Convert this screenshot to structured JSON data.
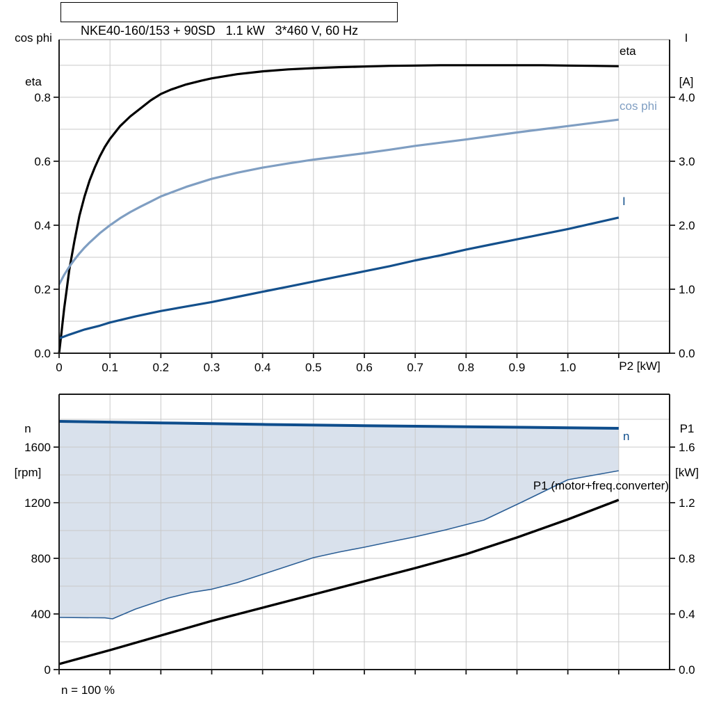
{
  "colors": {
    "grid": "#c9c9c9",
    "frame": "#1a1a1a",
    "frame_top_light": "#9b9b9b",
    "fill": "#cfdae7",
    "eta": "#000000",
    "cos_phi": "#7f9ec2",
    "current": "#14508c",
    "speed": "#0e4d8c",
    "p1": "#000000"
  },
  "chart_data": [
    {
      "type": "line",
      "title": "NKE40-160/153 + 90SD   1.1 kW   3*460 V, 60 Hz",
      "xlabel": "P2 [kW]",
      "xlim": [
        0,
        1.2
      ],
      "grid_x_step": 0.1,
      "x_ticks": {
        "values": [
          0,
          0.1,
          0.2,
          0.3,
          0.4,
          0.5,
          0.6,
          0.7,
          0.8,
          0.9,
          1.0,
          1.1
        ],
        "labels": [
          "0",
          "0.1",
          "0.2",
          "0.3",
          "0.4",
          "0.5",
          "0.6",
          "0.7",
          "0.8",
          "0.9",
          "1.0"
        ]
      },
      "y_left": {
        "title_lines": [
          "cos phi",
          "eta"
        ],
        "lim": [
          0,
          0.98
        ],
        "grid_step": 0.1,
        "ticks": {
          "values": [
            0,
            0.2,
            0.4,
            0.6,
            0.8
          ],
          "labels": [
            "0.0",
            "0.2",
            "0.4",
            "0.6",
            "0.8"
          ]
        }
      },
      "y_right": {
        "title_lines": [
          "I",
          "[A]"
        ],
        "lim": [
          0,
          4.9
        ],
        "ticks": {
          "values": [
            0,
            1,
            2,
            3,
            4
          ],
          "labels": [
            "0.0",
            "1.0",
            "2.0",
            "3.0",
            "4.0"
          ]
        }
      },
      "series": [
        {
          "name": "eta",
          "label": "eta",
          "axis": "left",
          "color": "#000000",
          "width": 3.2,
          "points": [
            [
              0,
              0
            ],
            [
              0.005,
              0.07
            ],
            [
              0.01,
              0.14
            ],
            [
              0.015,
              0.2
            ],
            [
              0.02,
              0.26
            ],
            [
              0.03,
              0.35
            ],
            [
              0.04,
              0.43
            ],
            [
              0.05,
              0.49
            ],
            [
              0.06,
              0.54
            ],
            [
              0.07,
              0.58
            ],
            [
              0.08,
              0.615
            ],
            [
              0.09,
              0.645
            ],
            [
              0.1,
              0.67
            ],
            [
              0.12,
              0.71
            ],
            [
              0.14,
              0.74
            ],
            [
              0.16,
              0.765
            ],
            [
              0.18,
              0.79
            ],
            [
              0.2,
              0.81
            ],
            [
              0.22,
              0.824
            ],
            [
              0.25,
              0.84
            ],
            [
              0.28,
              0.852
            ],
            [
              0.3,
              0.859
            ],
            [
              0.35,
              0.872
            ],
            [
              0.4,
              0.881
            ],
            [
              0.45,
              0.887
            ],
            [
              0.5,
              0.891
            ],
            [
              0.55,
              0.894
            ],
            [
              0.6,
              0.896
            ],
            [
              0.65,
              0.898
            ],
            [
              0.7,
              0.899
            ],
            [
              0.75,
              0.9
            ],
            [
              0.8,
              0.9
            ],
            [
              0.9,
              0.9
            ],
            [
              0.95,
              0.9
            ],
            [
              1.0,
              0.899
            ],
            [
              1.05,
              0.898
            ],
            [
              1.1,
              0.897
            ]
          ]
        },
        {
          "name": "cos_phi",
          "label": "cos phi",
          "axis": "left",
          "color": "#7f9ec2",
          "width": 3.2,
          "points": [
            [
              0,
              0.215
            ],
            [
              0.01,
              0.245
            ],
            [
              0.02,
              0.27
            ],
            [
              0.03,
              0.292
            ],
            [
              0.04,
              0.312
            ],
            [
              0.05,
              0.33
            ],
            [
              0.06,
              0.346
            ],
            [
              0.08,
              0.375
            ],
            [
              0.1,
              0.4
            ],
            [
              0.12,
              0.422
            ],
            [
              0.14,
              0.441
            ],
            [
              0.16,
              0.458
            ],
            [
              0.18,
              0.474
            ],
            [
              0.2,
              0.49
            ],
            [
              0.25,
              0.52
            ],
            [
              0.3,
              0.545
            ],
            [
              0.35,
              0.564
            ],
            [
              0.4,
              0.58
            ],
            [
              0.45,
              0.593
            ],
            [
              0.5,
              0.605
            ],
            [
              0.55,
              0.615
            ],
            [
              0.6,
              0.625
            ],
            [
              0.65,
              0.636
            ],
            [
              0.7,
              0.648
            ],
            [
              0.75,
              0.658
            ],
            [
              0.8,
              0.668
            ],
            [
              0.85,
              0.679
            ],
            [
              0.9,
              0.69
            ],
            [
              0.95,
              0.7
            ],
            [
              1.0,
              0.71
            ],
            [
              1.05,
              0.72
            ],
            [
              1.1,
              0.73
            ]
          ]
        },
        {
          "name": "I",
          "label": "I",
          "axis": "right",
          "color": "#14508c",
          "width": 3.2,
          "points": [
            [
              0,
              0.23
            ],
            [
              0.02,
              0.29
            ],
            [
              0.05,
              0.37
            ],
            [
              0.08,
              0.43
            ],
            [
              0.1,
              0.48
            ],
            [
              0.15,
              0.575
            ],
            [
              0.2,
              0.66
            ],
            [
              0.25,
              0.73
            ],
            [
              0.3,
              0.8
            ],
            [
              0.35,
              0.88
            ],
            [
              0.4,
              0.96
            ],
            [
              0.45,
              1.04
            ],
            [
              0.5,
              1.12
            ],
            [
              0.55,
              1.2
            ],
            [
              0.6,
              1.28
            ],
            [
              0.65,
              1.36
            ],
            [
              0.7,
              1.45
            ],
            [
              0.75,
              1.53
            ],
            [
              0.8,
              1.62
            ],
            [
              0.85,
              1.7
            ],
            [
              0.9,
              1.78
            ],
            [
              0.95,
              1.86
            ],
            [
              1.0,
              1.94
            ],
            [
              1.05,
              2.03
            ],
            [
              1.1,
              2.12
            ]
          ]
        }
      ]
    },
    {
      "type": "line",
      "xlim": [
        0,
        1.2
      ],
      "grid_x_step": 0.1,
      "x_ticks": {
        "values": [
          0,
          0.1,
          0.2,
          0.3,
          0.4,
          0.5,
          0.6,
          0.7,
          0.8,
          0.9,
          1.0,
          1.1
        ],
        "labels": []
      },
      "y_left": {
        "title_lines": [
          "n",
          "[rpm]"
        ],
        "lim": [
          0,
          1980
        ],
        "grid_step": 200,
        "ticks": {
          "values": [
            0,
            400,
            800,
            1200,
            1600
          ],
          "labels": [
            "0",
            "400",
            "800",
            "1200",
            "1600"
          ]
        }
      },
      "y_right": {
        "title_lines": [
          "P1",
          "[kW]"
        ],
        "lim": [
          0,
          1.98
        ],
        "ticks": {
          "values": [
            0,
            0.4,
            0.8,
            1.2,
            1.6
          ],
          "labels": [
            "0.0",
            "0.4",
            "0.8",
            "1.2",
            "1.6"
          ]
        }
      },
      "series": [
        {
          "name": "n",
          "label": "n",
          "axis": "left",
          "color": "#0e4d8c",
          "width": 4,
          "points": [
            [
              0,
              1785
            ],
            [
              0.2,
              1774
            ],
            [
              0.4,
              1763
            ],
            [
              0.6,
              1754
            ],
            [
              0.8,
              1746
            ],
            [
              1.0,
              1739
            ],
            [
              1.1,
              1735
            ]
          ]
        },
        {
          "name": "n_min",
          "axis": "left",
          "color": "#2b5e95",
          "width": 1.6,
          "points": [
            [
              0,
              375
            ],
            [
              0.09,
              372
            ],
            [
              0.105,
              365
            ],
            [
              0.15,
              435
            ],
            [
              0.215,
              515
            ],
            [
              0.26,
              555
            ],
            [
              0.3,
              578
            ],
            [
              0.35,
              625
            ],
            [
              0.4,
              685
            ],
            [
              0.45,
              745
            ],
            [
              0.5,
              805
            ],
            [
              0.55,
              845
            ],
            [
              0.6,
              880
            ],
            [
              0.65,
              918
            ],
            [
              0.7,
              955
            ],
            [
              0.76,
              1005
            ],
            [
              0.835,
              1075
            ],
            [
              0.91,
              1205
            ],
            [
              1.0,
              1365
            ],
            [
              1.1,
              1430
            ]
          ]
        },
        {
          "name": "P1",
          "label": "P1 (motor+freq.converter)",
          "axis": "right",
          "color": "#000000",
          "width": 3.4,
          "points": [
            [
              0,
              0.04
            ],
            [
              0.1,
              0.14
            ],
            [
              0.2,
              0.245
            ],
            [
              0.3,
              0.35
            ],
            [
              0.4,
              0.445
            ],
            [
              0.5,
              0.54
            ],
            [
              0.6,
              0.635
            ],
            [
              0.7,
              0.73
            ],
            [
              0.8,
              0.83
            ],
            [
              0.9,
              0.95
            ],
            [
              1.0,
              1.08
            ],
            [
              1.1,
              1.22
            ]
          ]
        }
      ],
      "fill_between": {
        "upper": "n",
        "lower": "n_min",
        "color": "#cfdae7",
        "opacity": 0.8
      },
      "footnote": "n = 100 %"
    }
  ]
}
